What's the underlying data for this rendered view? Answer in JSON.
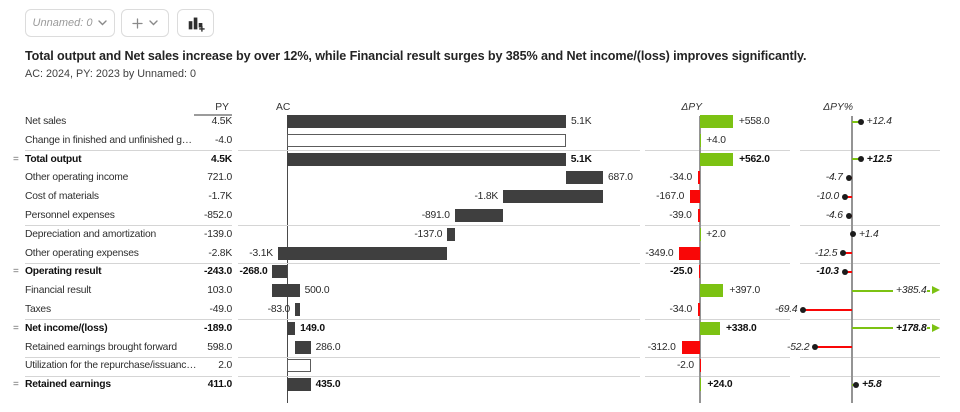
{
  "toolbar": {
    "scenario_label": "Unnamed: 0",
    "add_label": "+",
    "chevron_icon": "chevron-down-icon",
    "add_visual_icon": "bar-chart-plus-icon"
  },
  "header": {
    "title": "Total output and Net sales increase by over 12%, while Financial result surges by 385% and Net income/(loss) improves significantly.",
    "subtitle": "AC: 2024, PY: 2023 by Unnamed: 0"
  },
  "colors": {
    "positive": "#7CC213",
    "negative": "#F90707",
    "bar": "#3F3F3F",
    "axis_gray": "#949494",
    "axis_dark": "#4A4A4A",
    "separator": "#D5D5D5",
    "pin_dot": "#1C1C1C",
    "hollow_border": "#5C5C5C"
  },
  "chart_data": {
    "type": "table",
    "subtype": "waterfall-variance-table",
    "columns": [
      "PY",
      "AC",
      "ΔPY",
      "ΔPY%"
    ],
    "result_prefix": "=",
    "legend_note": "AC waterfall in dark gray; ΔPY bars green=positive red=negative; ΔPY% pins with off-scale arrows",
    "rows": [
      {
        "label": "Net sales",
        "py": "4.5K",
        "ac": 5146,
        "ac_label": "5.1K",
        "dpy": 558,
        "dpy_label": "+558.0",
        "pct": 12.4,
        "pct_label": "+12.4",
        "kind": "normal",
        "sep_after": false
      },
      {
        "label": "Change in finished and unfinished goo...",
        "py": "-4.0",
        "ac": -4,
        "ac_label": null,
        "dpy": 4,
        "dpy_label": "+4.0",
        "pct": null,
        "pct_label": null,
        "kind": "hollow",
        "sep_after": true
      },
      {
        "label": "Total output",
        "py": "4.5K",
        "ac": 5142,
        "ac_label": "5.1K",
        "dpy": 562,
        "dpy_label": "+562.0",
        "pct": 12.5,
        "pct_label": "+12.5",
        "kind": "result",
        "sep_after": false
      },
      {
        "label": "Other operating income",
        "py": "721.0",
        "ac": 687,
        "ac_label": "687.0",
        "dpy": -34,
        "dpy_label": "-34.0",
        "pct": -4.7,
        "pct_label": "-4.7",
        "kind": "normal",
        "sep_after": false
      },
      {
        "label": "Cost of materials",
        "py": "-1.7K",
        "ac": -1844,
        "ac_label": "-1.8K",
        "dpy": -167,
        "dpy_label": "-167.0",
        "pct": -10.0,
        "pct_label": "-10.0",
        "kind": "normal",
        "sep_after": false
      },
      {
        "label": "Personnel expenses",
        "py": "-852.0",
        "ac": -891,
        "ac_label": "-891.0",
        "dpy": -39,
        "dpy_label": "-39.0",
        "pct": -4.6,
        "pct_label": "-4.6",
        "kind": "normal",
        "sep_after": true
      },
      {
        "label": "Depreciation and amortization",
        "py": "-139.0",
        "ac": -137,
        "ac_label": "-137.0",
        "dpy": 2,
        "dpy_label": "+2.0",
        "pct": 1.4,
        "pct_label": "+1.4",
        "kind": "normal",
        "sep_after": false
      },
      {
        "label": "Other operating expenses",
        "py": "-2.8K",
        "ac": -3125,
        "ac_label": "-3.1K",
        "dpy": -349,
        "dpy_label": "-349.0",
        "pct": -12.5,
        "pct_label": "-12.5",
        "kind": "normal",
        "sep_after": true
      },
      {
        "label": "Operating result",
        "py": "-243.0",
        "ac": -268,
        "ac_label": "-268.0",
        "dpy": -25,
        "dpy_label": "-25.0",
        "pct": -10.3,
        "pct_label": "-10.3",
        "kind": "result",
        "sep_after": false
      },
      {
        "label": "Financial result",
        "py": "103.0",
        "ac": 500,
        "ac_label": "500.0",
        "dpy": 397,
        "dpy_label": "+397.0",
        "pct": 385.4,
        "pct_label": "+385.4",
        "pct_arrow": true,
        "kind": "normal",
        "sep_after": false
      },
      {
        "label": "Taxes",
        "py": "-49.0",
        "ac": -83,
        "ac_label": "-83.0",
        "dpy": -34,
        "dpy_label": "-34.0",
        "pct": -69.4,
        "pct_label": "-69.4",
        "kind": "normal",
        "sep_after": true
      },
      {
        "label": "Net income/(loss)",
        "py": "-189.0",
        "ac": 149,
        "ac_label": "149.0",
        "dpy": 338,
        "dpy_label": "+338.0",
        "pct": 178.8,
        "pct_label": "+178.8",
        "pct_arrow": true,
        "kind": "result",
        "sep_after": false
      },
      {
        "label": "Retained earnings brought forward",
        "py": "598.0",
        "ac": 286,
        "ac_label": "286.0",
        "dpy": -312,
        "dpy_label": "-312.0",
        "pct": -52.2,
        "pct_label": "-52.2",
        "kind": "normal",
        "sep_after": true
      },
      {
        "label": "Utilization for the repurchase/issuance ...",
        "py": "2.0",
        "ac": 0,
        "ac_label": null,
        "dpy": -2,
        "dpy_label": "-2.0",
        "pct": null,
        "pct_label": null,
        "kind": "hollow",
        "sep_after": true
      },
      {
        "label": "Retained earnings",
        "py": "411.0",
        "ac": 435,
        "ac_label": "435.0",
        "dpy": 24,
        "dpy_label": "+24.0",
        "pct": 5.8,
        "pct_label": "+5.8",
        "kind": "result",
        "sep_after": false
      }
    ]
  }
}
